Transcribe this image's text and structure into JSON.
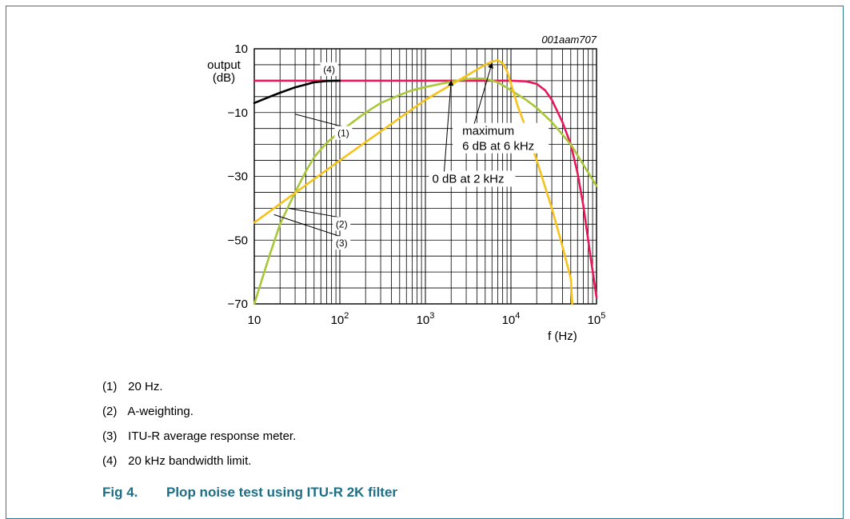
{
  "chart_data": {
    "type": "line",
    "x_scale": "log",
    "xlim": [
      10,
      100000
    ],
    "ylim": [
      -70,
      10
    ],
    "grid": true,
    "figure_id": "001aam707",
    "ylabel_line1": "output",
    "ylabel_line2": "(dB)",
    "xlabel": "f (Hz)",
    "y_ticks": [
      {
        "value": 10,
        "label": "10"
      },
      {
        "value": -10,
        "label": "−10"
      },
      {
        "value": -30,
        "label": "−30"
      },
      {
        "value": -50,
        "label": "−50"
      },
      {
        "value": -70,
        "label": "−70"
      }
    ],
    "x_ticks": [
      {
        "value": 10,
        "base": "10",
        "exp": ""
      },
      {
        "value": 100,
        "base": "10",
        "exp": "2"
      },
      {
        "value": 1000,
        "base": "10",
        "exp": "3"
      },
      {
        "value": 10000,
        "base": "10",
        "exp": "4"
      },
      {
        "value": 100000,
        "base": "10",
        "exp": "5"
      }
    ],
    "series": [
      {
        "color": "#e8185a",
        "x": [
          10,
          1000,
          10000,
          15000,
          20000,
          25000,
          30000,
          40000,
          50000,
          60000,
          70000,
          85000,
          100000
        ],
        "y": [
          0,
          0,
          0,
          -0.2,
          -1,
          -3,
          -6,
          -13,
          -20,
          -29,
          -39,
          -55,
          -68
        ]
      },
      {
        "color": "#000000",
        "x": [
          10,
          15,
          20,
          30,
          40,
          50,
          70,
          100
        ],
        "y": [
          -7,
          -5.1,
          -3.8,
          -2.1,
          -1.2,
          -0.5,
          -0.1,
          0
        ]
      },
      {
        "color": "#a8c83a",
        "x": [
          10,
          15,
          20,
          30,
          40,
          50,
          70,
          100,
          150,
          200,
          300,
          500,
          700,
          1000,
          2000,
          3000,
          4000,
          5000,
          7000,
          10000,
          15000,
          20000,
          30000,
          50000,
          100000
        ],
        "y": [
          -70,
          -55,
          -45,
          -35,
          -28.5,
          -24,
          -19.5,
          -16,
          -12.5,
          -10,
          -7,
          -4.5,
          -3,
          -2,
          -0.3,
          0.5,
          0.7,
          0.6,
          -0.5,
          -3,
          -6,
          -8.5,
          -13,
          -20,
          -33
        ]
      },
      {
        "color": "#f7c21a",
        "x": [
          10,
          100,
          1000,
          3000,
          5000,
          6000,
          7000,
          8000,
          9000,
          10000,
          12000,
          15000,
          20000,
          30000,
          40000,
          50000,
          52000
        ],
        "y": [
          -44.5,
          -25,
          -6,
          1.5,
          5,
          6,
          6.4,
          5.5,
          3,
          -1,
          -8,
          -15,
          -25,
          -40,
          -52,
          -62,
          -70
        ]
      }
    ],
    "series_labels": [
      {
        "text": "(1)",
        "x": 30,
        "y": -10.5,
        "tx": 110,
        "ty": -16.5
      },
      {
        "text": "(2)",
        "x": 25,
        "y": -40,
        "tx": 105,
        "ty": -45
      },
      {
        "text": "(3)",
        "x": 17,
        "y": -42,
        "tx": 105,
        "ty": -51
      },
      {
        "text": "(4)",
        "x": 75,
        "y": 0.5,
        "tx": 75,
        "ty": 3.5
      }
    ],
    "annotations": [
      {
        "line1": "maximum",
        "line2": "6 dB at 6 kHz",
        "x": 6000,
        "y": 6,
        "tx": 2700,
        "ty": -17
      },
      {
        "line1": "0 dB at 2 kHz",
        "line2": "",
        "x": 2000,
        "y": 0.5,
        "tx": 1200,
        "ty": -32
      }
    ]
  },
  "notes": [
    {
      "num": "(1)",
      "text": "20 Hz."
    },
    {
      "num": "(2)",
      "text": "A-weighting."
    },
    {
      "num": "(3)",
      "text": "ITU-R average response meter."
    },
    {
      "num": "(4)",
      "text": "20 kHz bandwidth limit."
    }
  ],
  "caption": {
    "number": "Fig 4.",
    "title": "Plop noise test using ITU-R 2K filter"
  }
}
